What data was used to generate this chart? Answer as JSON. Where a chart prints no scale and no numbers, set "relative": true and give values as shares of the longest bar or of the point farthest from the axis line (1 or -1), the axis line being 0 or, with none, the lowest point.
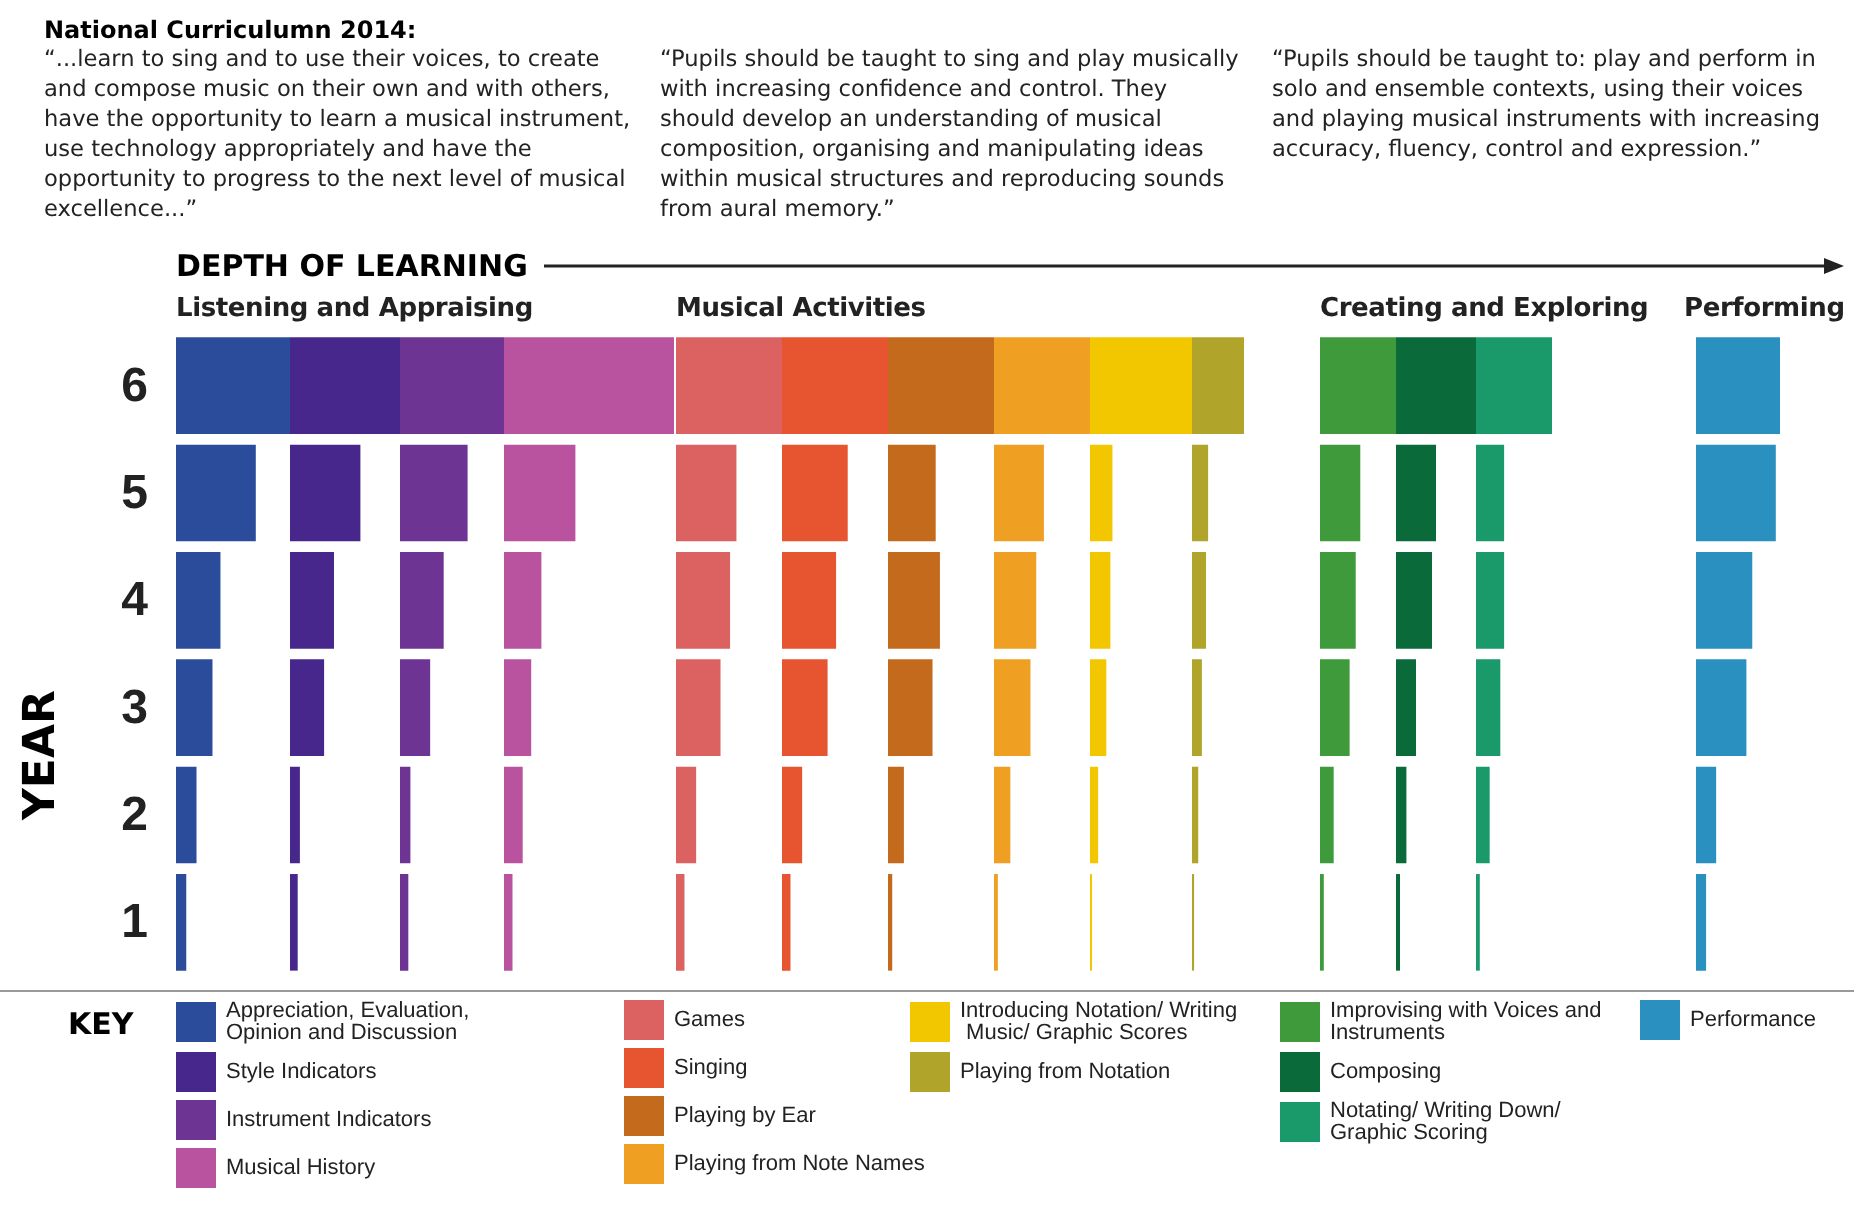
{
  "chart_data": [
    {
      "type": "other",
      "title": "National Curriculumn 2014:",
      "annotations": [
        "“...learn to sing and to use their voices, to create and compose music on their own and with others, have the opportunity to learn a musical instrument, use technology appropriately and have the opportunity to progress to the next level of musical excellence...”",
        "“Pupils should be taught to sing and play musically with increasing confidence and control. They should develop an understanding of musical composition, organising and manipulating ideas within musical structures and reproducing sounds from aural memory.”",
        "“Pupils should be taught to: play and perform in solo and ensemble contexts, using their voices and playing musical instruments with increasing accuracy, fluency, control and expression.”"
      ]
    },
    {
      "type": "bar",
      "orientation": "horizontal",
      "relative": true,
      "title": "Listening and Appraising",
      "xlabel": "DEPTH OF LEARNING",
      "ylabel": "YEAR",
      "legend_title": "KEY",
      "legend": "bottom",
      "tick_labels": "y",
      "categories": [
        "6",
        "5",
        "4",
        "3",
        "2",
        "1"
      ],
      "series": [
        {
          "name": "Appreciation, Evaluation, Opinion and Discussion",
          "color": "#2b4c9b",
          "values": [
            1,
            0.7,
            0.39,
            0.32,
            0.18,
            0.09
          ]
        }
      ]
    },
    {
      "type": "bar",
      "orientation": "horizontal",
      "relative": true,
      "legend": "bottom",
      "tick_labels": false,
      "categories": [
        "6",
        "5",
        "4",
        "3",
        "2",
        "1"
      ],
      "series": [
        {
          "name": "Style Indicators",
          "color": "#47278c",
          "values": [
            1,
            0.64,
            0.4,
            0.31,
            0.09,
            0.07
          ]
        }
      ]
    },
    {
      "type": "bar",
      "orientation": "horizontal",
      "relative": true,
      "legend": "bottom",
      "tick_labels": false,
      "categories": [
        "6",
        "5",
        "4",
        "3",
        "2",
        "1"
      ],
      "series": [
        {
          "name": "Instrument Indicators",
          "color": "#6d3494",
          "values": [
            1,
            0.65,
            0.42,
            0.29,
            0.1,
            0.08
          ]
        }
      ]
    },
    {
      "type": "bar",
      "orientation": "horizontal",
      "relative": true,
      "legend": "bottom",
      "tick_labels": false,
      "categories": [
        "6",
        "5",
        "4",
        "3",
        "2",
        "1"
      ],
      "series": [
        {
          "name": "Musical History",
          "color": "#b9539f",
          "values": [
            1,
            0.42,
            0.22,
            0.16,
            0.11,
            0.05
          ]
        }
      ]
    },
    {
      "type": "bar",
      "orientation": "horizontal",
      "relative": true,
      "title": "Musical Activities",
      "legend": "bottom",
      "tick_labels": false,
      "categories": [
        "6",
        "5",
        "4",
        "3",
        "2",
        "1"
      ],
      "series": [
        {
          "name": "Games",
          "color": "#dc6262",
          "values": [
            1,
            0.57,
            0.51,
            0.42,
            0.19,
            0.08
          ]
        }
      ]
    },
    {
      "type": "bar",
      "orientation": "horizontal",
      "relative": true,
      "legend": "bottom",
      "tick_labels": false,
      "categories": [
        "6",
        "5",
        "4",
        "3",
        "2",
        "1"
      ],
      "series": [
        {
          "name": "Singing",
          "color": "#e6552f",
          "values": [
            1,
            0.62,
            0.51,
            0.43,
            0.19,
            0.08
          ]
        }
      ]
    },
    {
      "type": "bar",
      "orientation": "horizontal",
      "relative": true,
      "legend": "bottom",
      "tick_labels": false,
      "categories": [
        "6",
        "5",
        "4",
        "3",
        "2",
        "1"
      ],
      "series": [
        {
          "name": "Playing by Ear",
          "color": "#c46a1c",
          "values": [
            1,
            0.45,
            0.49,
            0.42,
            0.15,
            0.04
          ]
        }
      ]
    },
    {
      "type": "bar",
      "orientation": "horizontal",
      "relative": true,
      "legend": "bottom",
      "tick_labels": false,
      "categories": [
        "6",
        "5",
        "4",
        "3",
        "2",
        "1"
      ],
      "series": [
        {
          "name": "Playing from Note Names",
          "color": "#ef9f22",
          "values": [
            1,
            0.52,
            0.44,
            0.38,
            0.17,
            0.04
          ]
        }
      ]
    },
    {
      "type": "bar",
      "orientation": "horizontal",
      "relative": true,
      "legend": "bottom",
      "tick_labels": false,
      "categories": [
        "6",
        "5",
        "4",
        "3",
        "2",
        "1"
      ],
      "series": [
        {
          "name": "Introducing Notation/ Writing Music/ Graphic Scores",
          "color": "#f3c700",
          "values": [
            1,
            0.22,
            0.2,
            0.16,
            0.08,
            0.02
          ]
        }
      ]
    },
    {
      "type": "bar",
      "orientation": "horizontal",
      "relative": true,
      "legend": "bottom",
      "tick_labels": false,
      "categories": [
        "6",
        "5",
        "4",
        "3",
        "2",
        "1"
      ],
      "series": [
        {
          "name": "Playing from Notation",
          "color": "#b0a52a",
          "values": [
            1,
            0.31,
            0.27,
            0.19,
            0.12,
            0.04
          ]
        }
      ]
    },
    {
      "type": "bar",
      "orientation": "horizontal",
      "relative": true,
      "title": "Creating and Exploring",
      "legend": "bottom",
      "tick_labels": false,
      "categories": [
        "6",
        "5",
        "4",
        "3",
        "2",
        "1"
      ],
      "series": [
        {
          "name": "Improvising with Voices and Instruments",
          "color": "#3f9a3c",
          "values": [
            1,
            0.53,
            0.47,
            0.39,
            0.18,
            0.05
          ]
        }
      ]
    },
    {
      "type": "bar",
      "orientation": "horizontal",
      "relative": true,
      "legend": "bottom",
      "tick_labels": false,
      "categories": [
        "6",
        "5",
        "4",
        "3",
        "2",
        "1"
      ],
      "series": [
        {
          "name": "Composing",
          "color": "#0b6a3a",
          "values": [
            1,
            0.5,
            0.45,
            0.25,
            0.13,
            0.05
          ]
        }
      ]
    },
    {
      "type": "bar",
      "orientation": "horizontal",
      "relative": true,
      "legend": "bottom",
      "tick_labels": false,
      "categories": [
        "6",
        "5",
        "4",
        "3",
        "2",
        "1"
      ],
      "series": [
        {
          "name": "Notating/ Writing Down/ Graphic Scoring",
          "color": "#1a9a6b",
          "values": [
            1,
            0.37,
            0.37,
            0.32,
            0.18,
            0.05
          ]
        }
      ]
    },
    {
      "type": "bar",
      "orientation": "horizontal",
      "relative": true,
      "title": "Performing",
      "legend": "bottom",
      "tick_labels": false,
      "categories": [
        "6",
        "5",
        "4",
        "3",
        "2",
        "1"
      ],
      "series": [
        {
          "name": "Performance",
          "color": "#2a90c0",
          "values": [
            1,
            0.95,
            0.67,
            0.6,
            0.24,
            0.12
          ]
        }
      ]
    }
  ]
}
